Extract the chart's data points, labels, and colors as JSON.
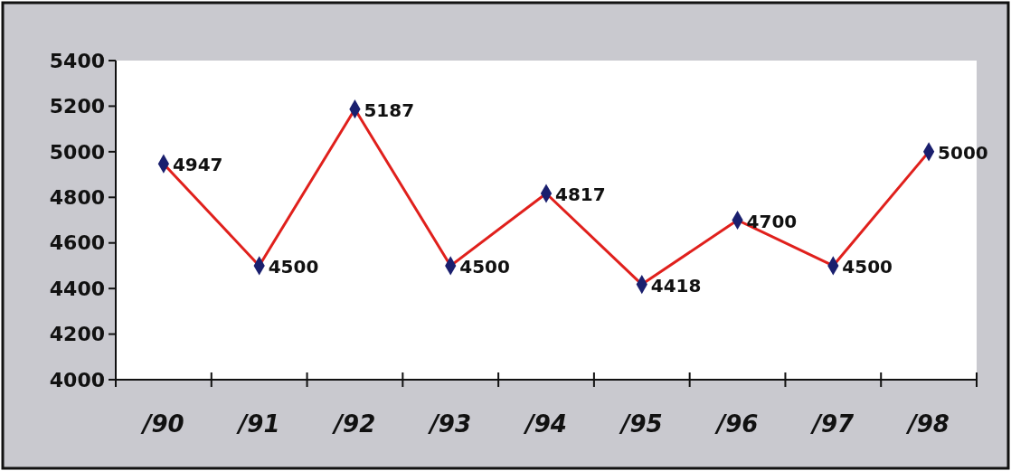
{
  "chart_data": {
    "type": "line",
    "categories": [
      "/90",
      "/91",
      "/92",
      "/93",
      "/94",
      "/95",
      "/96",
      "/97",
      "/98"
    ],
    "series": [
      {
        "color": "#e0201c",
        "values": [
          4947,
          4500,
          5187,
          4500,
          4817,
          4418,
          4700,
          4500,
          5000
        ]
      }
    ],
    "ylim": [
      4000,
      5400
    ],
    "yticks": [
      4000,
      4200,
      4400,
      4600,
      4800,
      5000,
      5200,
      5400
    ],
    "marker": "diamond",
    "line_style": "solid",
    "data_labels": true
  }
}
